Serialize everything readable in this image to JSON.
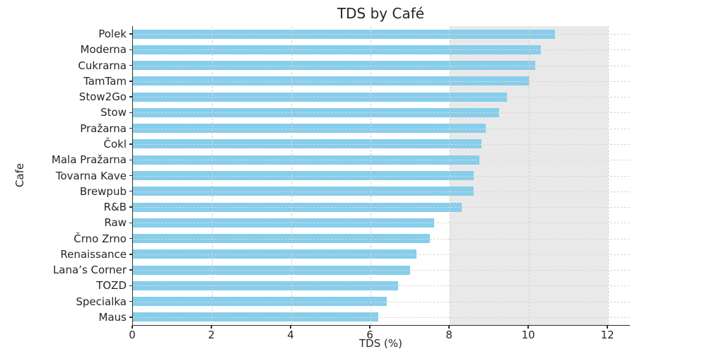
{
  "chart_data": {
    "type": "bar",
    "orientation": "horizontal",
    "title": "TDS by Café",
    "xlabel": "TDS (%)",
    "ylabel": "Cafe",
    "categories": [
      "Polek",
      "Moderna",
      "Cukrarna",
      "TamTam",
      "Stow2Go",
      "Stow",
      "Pražarna",
      "Čokl",
      "Mala Pražarna",
      "Tovarna Kave",
      "Brewpub",
      "R&B",
      "Raw",
      "Črno Zrno",
      "Renaissance",
      "Lana’s Corner",
      "TOZD",
      "Specialka",
      "Maus"
    ],
    "values": [
      10.65,
      10.3,
      10.15,
      10.0,
      9.45,
      9.25,
      8.9,
      8.8,
      8.75,
      8.6,
      8.6,
      8.3,
      7.6,
      7.5,
      7.15,
      7.0,
      6.7,
      6.4,
      6.2
    ],
    "xlim": [
      0,
      12.55
    ],
    "xticks": [
      0,
      2,
      4,
      6,
      8,
      10,
      12
    ],
    "grid": true,
    "gridline_style": "dashed",
    "legend": "none",
    "shaded_band": {
      "from": 8,
      "to": 12,
      "color": "#e9e9e9"
    },
    "bar_color": "#87ceeb",
    "spine_color": "#2e2e2e",
    "text_color": "#262626",
    "gridline_color": "#d8d8d8"
  }
}
